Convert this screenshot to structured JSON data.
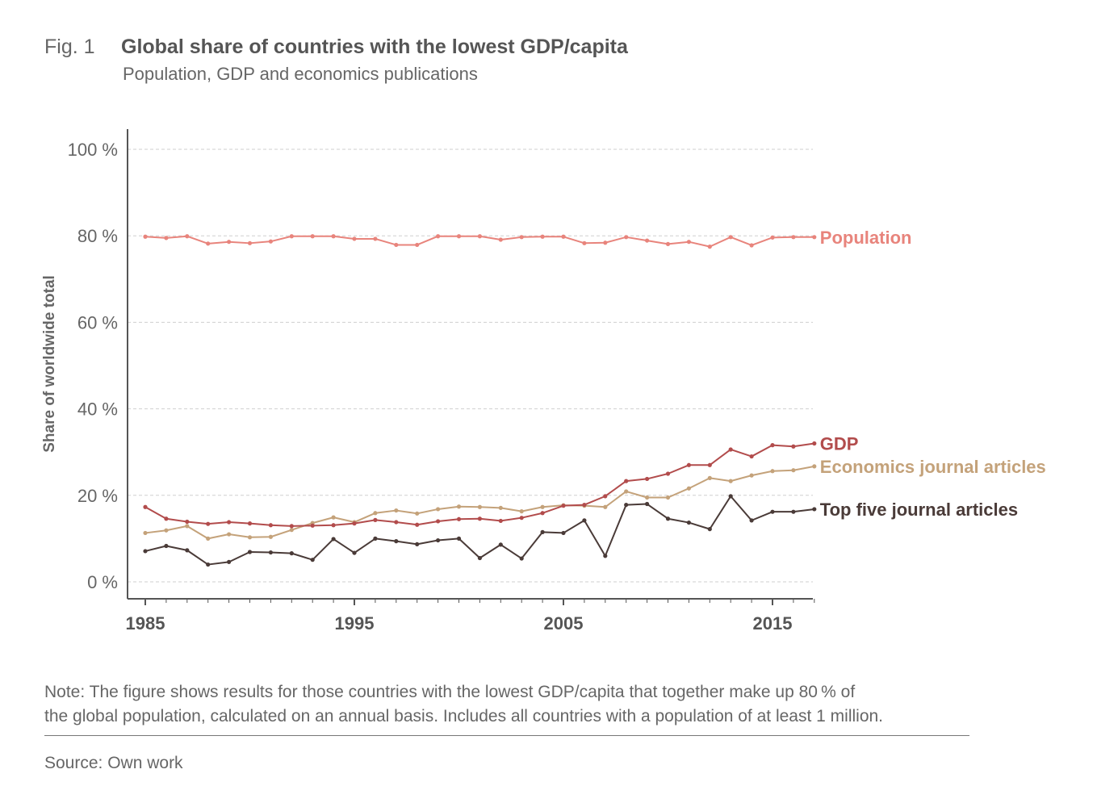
{
  "figure": {
    "label": "Fig. 1",
    "title": "Global share of countries with the lowest GDP/capita",
    "subtitle": "Population, GDP and economics publications"
  },
  "chart_data": {
    "type": "line",
    "ylabel": "Share of worldwide total",
    "xlabel": "",
    "xlim": [
      1985,
      2017
    ],
    "ylim": [
      0,
      100
    ],
    "grid": true,
    "y_ticks": [
      {
        "value": 0,
        "label": "0 %"
      },
      {
        "value": 20,
        "label": "20 %"
      },
      {
        "value": 40,
        "label": "40 %"
      },
      {
        "value": 60,
        "label": "60 %"
      },
      {
        "value": 80,
        "label": "80 %"
      },
      {
        "value": 100,
        "label": "100 %"
      }
    ],
    "x_ticks": [
      {
        "value": 1985,
        "label": "1985"
      },
      {
        "value": 1995,
        "label": "1995"
      },
      {
        "value": 2005,
        "label": "2005"
      },
      {
        "value": 2015,
        "label": "2015"
      }
    ],
    "x": [
      1985,
      1986,
      1987,
      1988,
      1989,
      1990,
      1991,
      1992,
      1993,
      1994,
      1995,
      1996,
      1997,
      1998,
      1999,
      2000,
      2001,
      2002,
      2003,
      2004,
      2005,
      2006,
      2007,
      2008,
      2009,
      2010,
      2011,
      2012,
      2013,
      2014,
      2015,
      2016,
      2017
    ],
    "series": [
      {
        "key": "population",
        "name": "Population",
        "color": "#e8847c",
        "values": [
          79.8,
          79.5,
          79.9,
          78.2,
          78.6,
          78.3,
          78.7,
          79.9,
          79.9,
          79.9,
          79.3,
          79.3,
          77.9,
          77.9,
          79.9,
          79.9,
          79.9,
          79.1,
          79.7,
          79.8,
          79.8,
          78.3,
          78.4,
          79.7,
          78.9,
          78.1,
          78.6,
          77.5,
          79.7,
          77.8,
          79.6,
          79.7,
          79.7
        ]
      },
      {
        "key": "gdp",
        "name": "GDP",
        "color": "#b24c4c",
        "values": [
          17.3,
          14.6,
          13.9,
          13.4,
          13.8,
          13.5,
          13.1,
          12.9,
          13.0,
          13.1,
          13.5,
          14.3,
          13.8,
          13.2,
          14.0,
          14.5,
          14.6,
          14.1,
          14.8,
          15.9,
          17.6,
          17.8,
          19.8,
          23.3,
          23.8,
          25.0,
          27.0,
          27.0,
          30.6,
          29.0,
          31.6,
          31.3,
          32.0
        ]
      },
      {
        "key": "economics",
        "name": "Economics journal articles",
        "color": "#c4a27a",
        "values": [
          11.3,
          11.9,
          12.9,
          10.0,
          11.0,
          10.3,
          10.4,
          12.0,
          13.6,
          14.9,
          13.8,
          15.9,
          16.5,
          15.8,
          16.8,
          17.4,
          17.3,
          17.1,
          16.3,
          17.3,
          17.7,
          17.6,
          17.3,
          20.9,
          19.5,
          19.5,
          21.6,
          24.0,
          23.3,
          24.6,
          25.6,
          25.8,
          26.7
        ]
      },
      {
        "key": "top_five",
        "name": "Top five journal articles",
        "color": "#4a3b38",
        "values": [
          7.1,
          8.3,
          7.3,
          4.0,
          4.6,
          6.9,
          6.8,
          6.6,
          5.1,
          9.9,
          6.7,
          10.0,
          9.4,
          8.7,
          9.6,
          10.0,
          5.5,
          8.6,
          5.4,
          11.5,
          11.3,
          14.2,
          6.0,
          17.8,
          18.0,
          14.6,
          13.7,
          12.2,
          19.8,
          14.2,
          16.2,
          16.2,
          16.8
        ]
      }
    ]
  },
  "note": {
    "line1": "Note: The figure shows results for those countries with the lowest GDP/capita that together make up 80 % of",
    "line2": "the global population, calculated on an annual basis. Includes all countries with a population of at least 1 million."
  },
  "source": "Source: Own work"
}
